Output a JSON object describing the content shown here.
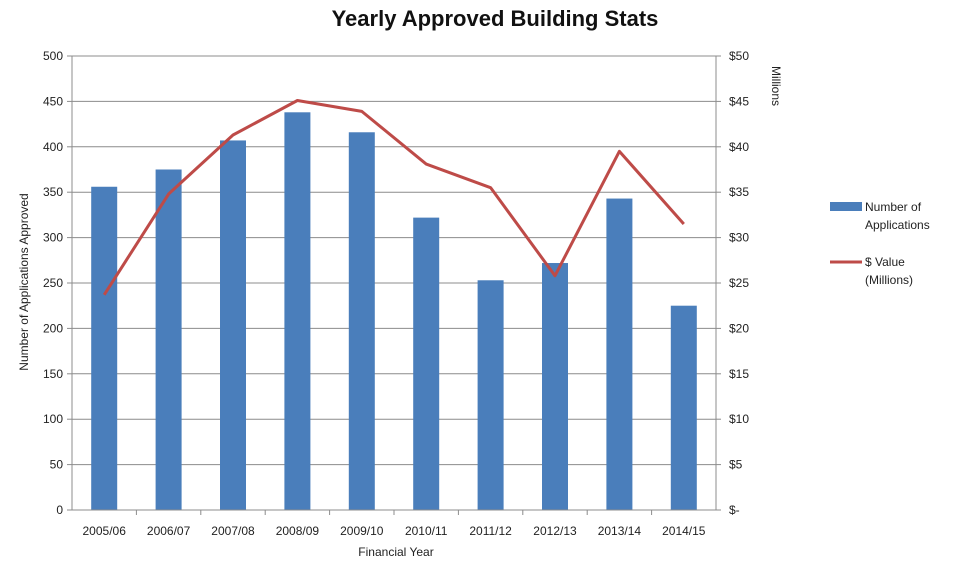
{
  "chart_data": {
    "type": "bar",
    "title": "Yearly Approved Building Stats",
    "xlabel": "Financial Year",
    "ylabel": "Number of Applications Approved",
    "y2label": "Millions",
    "categories": [
      "2005/06",
      "2006/07",
      "2007/08",
      "2008/09",
      "2009/10",
      "2010/11",
      "2011/12",
      "2012/13",
      "2013/14",
      "2014/15"
    ],
    "ylim": [
      0,
      500
    ],
    "y2lim": [
      0,
      50
    ],
    "yticks": [
      "0",
      "50",
      "100",
      "150",
      "200",
      "250",
      "300",
      "350",
      "400",
      "450",
      "500"
    ],
    "y2ticks": [
      "$-",
      "$5",
      "$10",
      "$15",
      "$20",
      "$25",
      "$30",
      "$35",
      "$40",
      "$45",
      "$50"
    ],
    "grid": true,
    "series": [
      {
        "name": "Number of Applications",
        "type": "bar",
        "axis": "left",
        "color": "#4a7ebb",
        "values": [
          356,
          375,
          407,
          438,
          416,
          322,
          253,
          272,
          343,
          225
        ]
      },
      {
        "name": "$ Value (Millions)",
        "type": "line",
        "axis": "right",
        "color": "#be4b48",
        "values": [
          23.7,
          34.8,
          41.3,
          45.1,
          43.9,
          38.1,
          35.5,
          25.8,
          39.5,
          31.5
        ]
      }
    ],
    "legend": {
      "position": "right",
      "entries": [
        {
          "line1": "Number of",
          "line2": "Applications"
        },
        {
          "line1": "$ Value",
          "line2": "(Millions)"
        }
      ]
    }
  }
}
